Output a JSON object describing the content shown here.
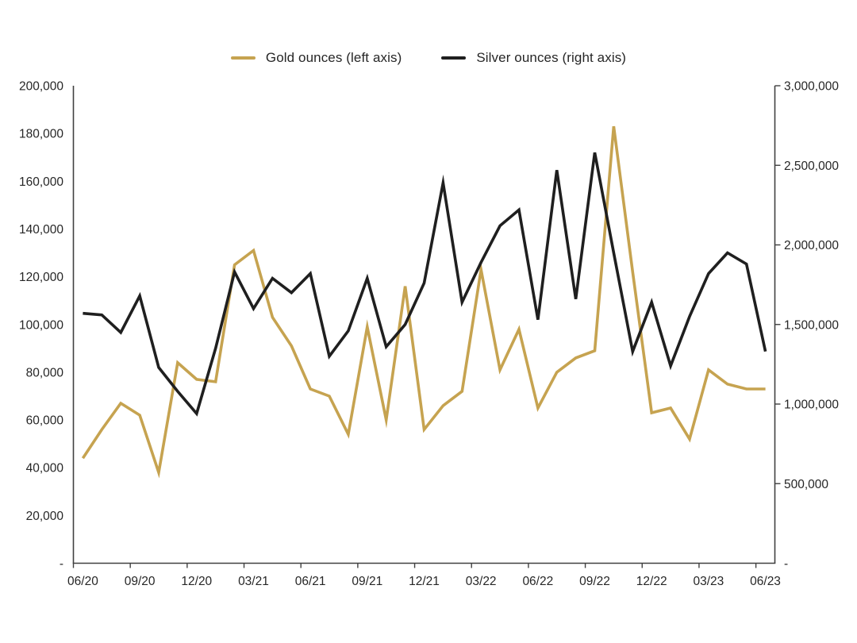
{
  "legend": {
    "items": [
      {
        "label": "Gold ounces (left axis)",
        "color": "#C6A350"
      },
      {
        "label": "Silver ounces (right axis)",
        "color": "#1F1F1F"
      }
    ]
  },
  "chart_data": {
    "type": "line",
    "title": "",
    "grid": false,
    "legend_position": "top",
    "x": [
      "06/20",
      "07/20",
      "08/20",
      "09/20",
      "10/20",
      "11/20",
      "12/20",
      "01/21",
      "02/21",
      "03/21",
      "04/21",
      "05/21",
      "06/21",
      "07/21",
      "08/21",
      "09/21",
      "10/21",
      "11/21",
      "12/21",
      "01/22",
      "02/22",
      "03/22",
      "04/22",
      "05/22",
      "06/22",
      "07/22",
      "08/22",
      "09/22",
      "10/22",
      "11/22",
      "12/22",
      "01/23",
      "02/23",
      "03/23",
      "04/23",
      "05/23",
      "06/23"
    ],
    "x_tick_labels": [
      "06/20",
      "09/20",
      "12/20",
      "03/21",
      "06/21",
      "09/21",
      "12/21",
      "03/22",
      "06/22",
      "09/22",
      "12/22",
      "03/23",
      "06/23"
    ],
    "series": [
      {
        "name": "Gold ounces (left axis)",
        "axis": "left",
        "color": "#C6A350",
        "values": [
          44000,
          56000,
          67000,
          62000,
          38000,
          84000,
          77000,
          76000,
          125000,
          131000,
          103000,
          91000,
          73000,
          70000,
          54000,
          99000,
          60000,
          116000,
          56000,
          66000,
          72000,
          123000,
          81000,
          98000,
          65000,
          80000,
          86000,
          89000,
          183000,
          122000,
          63000,
          65000,
          52000,
          81000,
          75000,
          73000,
          73000
        ]
      },
      {
        "name": "Silver ounces (right axis)",
        "axis": "right",
        "color": "#1F1F1F",
        "values": [
          1570000,
          1560000,
          1450000,
          1680000,
          1230000,
          1080000,
          940000,
          1350000,
          1830000,
          1600000,
          1790000,
          1700000,
          1820000,
          1300000,
          1460000,
          1790000,
          1360000,
          1500000,
          1760000,
          2390000,
          1640000,
          1890000,
          2120000,
          2220000,
          1530000,
          2470000,
          1660000,
          2580000,
          1950000,
          1330000,
          1640000,
          1240000,
          1550000,
          1820000,
          1950000,
          1880000,
          1330000
        ]
      }
    ],
    "left_axis": {
      "min": 0,
      "max": 200000,
      "tick_step": 20000,
      "tick_labels": [
        "200,000",
        "180,000",
        "160,000",
        "140,000",
        "120,000",
        "100,000",
        "80,000",
        "60,000",
        "40,000",
        "20,000",
        "-"
      ]
    },
    "right_axis": {
      "min": 0,
      "max": 3000000,
      "tick_step": 500000,
      "tick_labels": [
        "3,000,000",
        "2,500,000",
        "2,000,000",
        "1,500,000",
        "1,000,000",
        "500,000",
        "-"
      ]
    }
  }
}
